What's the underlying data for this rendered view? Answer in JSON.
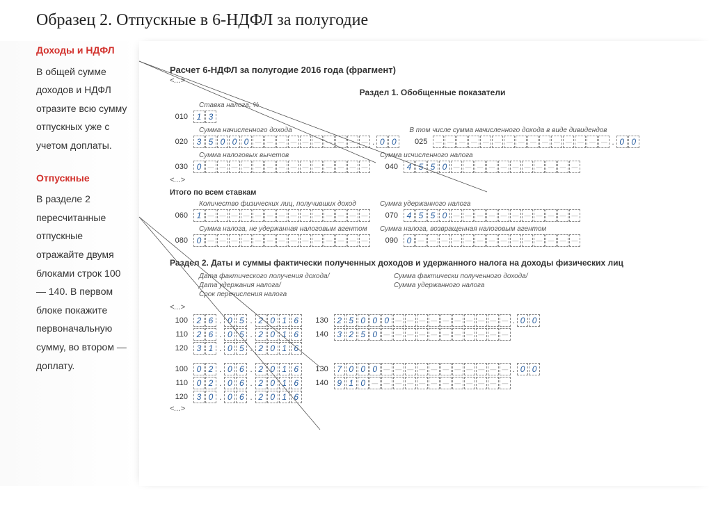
{
  "title": "Образец 2. Отпускные в 6-НДФЛ за полугодие",
  "sidebar": {
    "h1": "Доходы и НДФЛ",
    "p1": "В общей сумме доходов и НДФЛ отразите всю сумму отпускных уже с учетом доплаты.",
    "h2": "Отпускные",
    "p2": "В разделе 2 пересчитанные отпускные отражайте двумя блоками строк 100 — 140. В первом блоке покажите перво­начальную сумму, во втором — доплату."
  },
  "form": {
    "title": "Расчет 6-НДФЛ за полугодие 2016 года (фрагмент)",
    "ell": "<...>",
    "sec1": "Раздел 1. Обобщенные показатели",
    "rate_label": "Ставка налога, %",
    "l010": "010",
    "v010": "13",
    "lbl_020": "Сумма начисленного дохода",
    "lbl_025": "В том числе сумма начисленного дохода в виде дивидендов",
    "l020": "020",
    "v020_int": "35000",
    "v020_dec": "00",
    "l025": "025",
    "v025_dec": "00",
    "lbl_030": "Сумма налоговых вычетов",
    "lbl_040": "Сумма исчисленного налога",
    "l030": "030",
    "v030": "0",
    "l040": "040",
    "v040": "4550",
    "subhead": "Итого по всем ставкам",
    "lbl_060": "Количество физических лиц, получивших доход",
    "lbl_070": "Сумма удержанного налога",
    "l060": "060",
    "v060": "1",
    "l070": "070",
    "v070": "4550",
    "lbl_080": "Сумма налога, не удержанная налоговым агентом",
    "lbl_090": "Сумма налога, возвращенная налоговым агентом",
    "l080": "080",
    "v080": "0",
    "l090": "090",
    "v090": "0",
    "sec2": "Раздел 2. Даты и суммы фактически полученных доходов и удержанного налога на доходы физических лиц",
    "col_left_1": "Дата фактического получения дохода/",
    "col_left_2": "Дата удержания налога/",
    "col_left_3": "Срок перечисления налога",
    "col_right_1": "Сумма фактически полученного дохода/",
    "col_right_2": "Сумма удержанного налога",
    "block1": {
      "l100": "100",
      "d100": [
        "26",
        "05",
        "2016"
      ],
      "l130": "130",
      "v130_int": "25000",
      "v130_dec": "00",
      "l110": "110",
      "d110": [
        "26",
        "05",
        "2016"
      ],
      "l140": "140",
      "v140": "3250",
      "l120": "120",
      "d120": [
        "31",
        "05",
        "2016"
      ]
    },
    "block2": {
      "l100": "100",
      "d100": [
        "02",
        "06",
        "2016"
      ],
      "l130": "130",
      "v130_int": "7000",
      "v130_dec": "00",
      "l110": "110",
      "d110": [
        "02",
        "06",
        "2016"
      ],
      "l140": "140",
      "v140": "910",
      "l120": "120",
      "d120": [
        "30",
        "06",
        "2016"
      ]
    }
  },
  "colors": {
    "accent_red": "#d2322d",
    "digit_blue": "#2a5fa0",
    "cell_border": "#888888"
  }
}
